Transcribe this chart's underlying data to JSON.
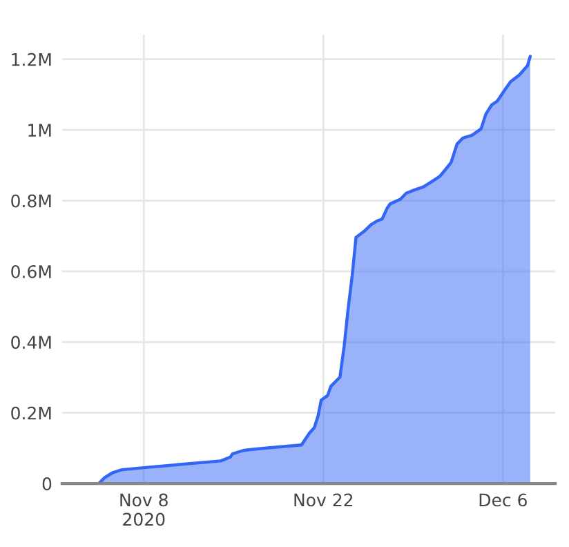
{
  "chart_data": {
    "type": "area",
    "x": [
      "2020-11-03T14:00",
      "2020-11-04T12:00",
      "2020-11-04T22:00",
      "2020-11-05T14:00",
      "2020-11-06T07:00",
      "2020-11-08T00:00",
      "2020-11-14T00:00",
      "2020-11-14T18:00",
      "2020-11-14T22:00",
      "2020-11-15T19:00",
      "2020-11-17T02:00",
      "2020-11-20T07:00",
      "2020-11-20T22:00",
      "2020-11-21T07:00",
      "2020-11-21T14:00",
      "2020-11-21T20:00",
      "2020-11-22T08:00",
      "2020-11-22T14:00",
      "2020-11-23T07:00",
      "2020-11-23T15:00",
      "2020-11-23T22:00",
      "2020-11-24T06:00",
      "2020-11-24T13:00",
      "2020-11-25T04:00",
      "2020-11-25T17:00",
      "2020-11-26T05:00",
      "2020-11-26T14:00",
      "2020-11-26T23:00",
      "2020-11-27T05:00",
      "2020-11-28T00:00",
      "2020-11-28T11:00",
      "2020-11-29T02:00",
      "2020-11-29T19:00",
      "2020-11-30T09:00",
      "2020-12-01T02:00",
      "2020-12-01T13:00",
      "2020-12-01T23:00",
      "2020-12-02T10:00",
      "2020-12-02T21:00",
      "2020-12-03T14:00",
      "2020-12-04T07:00",
      "2020-12-04T16:00",
      "2020-12-05T03:00",
      "2020-12-05T13:00",
      "2020-12-06T02:00",
      "2020-12-06T14:00",
      "2020-12-07T07:00",
      "2020-12-07T22:00",
      "2020-12-08T03:00"
    ],
    "series": [
      {
        "color": "#3366f5",
        "values": [
          0,
          0,
          16000,
          31000,
          39000,
          45000,
          64000,
          75000,
          84000,
          94000,
          99000,
          109000,
          143000,
          158000,
          191000,
          236000,
          249000,
          275000,
          301000,
          390000,
          490000,
          589000,
          696000,
          713000,
          732000,
          743000,
          748000,
          778000,
          791000,
          804000,
          821000,
          830000,
          839000,
          852000,
          869000,
          889000,
          908000,
          960000,
          977000,
          985000,
          1003000,
          1045000,
          1071000,
          1081000,
          1110000,
          1136000,
          1156000,
          1182000,
          1208000
        ]
      }
    ],
    "xlim": [
      "2020-11-01T15:00",
      "2020-12-10T02:00"
    ],
    "xticks": [
      {
        "value": "2020-11-08",
        "label": "Nov 8\n2020"
      },
      {
        "value": "2020-11-22",
        "label": "Nov 22"
      },
      {
        "value": "2020-12-06",
        "label": "Dec 6"
      }
    ],
    "ylim": [
      0,
      1270000
    ],
    "yticks": [
      0,
      {
        "value": 200000,
        "label": "0.2M"
      },
      {
        "value": 400000,
        "label": "0.4M"
      },
      {
        "value": 600000,
        "label": "0.6M"
      },
      {
        "value": 800000,
        "label": "0.8M"
      },
      {
        "value": 1000000,
        "label": "1M"
      },
      {
        "value": 1200000,
        "label": "1.2M"
      }
    ],
    "grid": true
  }
}
